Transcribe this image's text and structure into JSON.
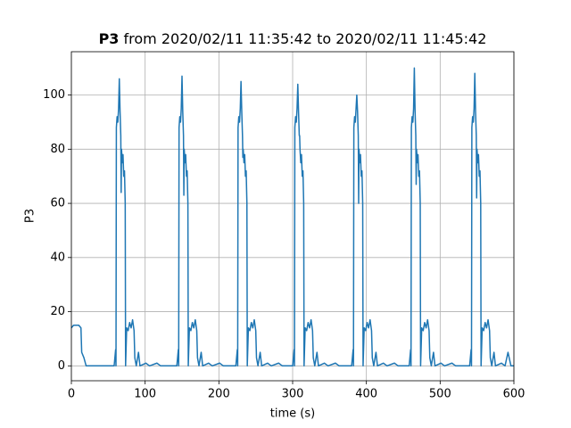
{
  "chart_data": {
    "type": "line",
    "title": [
      "P3",
      "from 2020/02/11 11:35:42 to 2020/02/11 11:45:42"
    ],
    "xlabel": "time (s)",
    "ylabel": "P3",
    "xlim": [
      0,
      600
    ],
    "ylim": [
      -5.5,
      116
    ],
    "xticks": [
      0,
      100,
      200,
      300,
      400,
      500,
      600
    ],
    "yticks": [
      0,
      20,
      40,
      60,
      80,
      100
    ],
    "grid": true,
    "x": [
      0,
      3,
      10,
      13,
      14,
      17,
      20,
      58,
      60,
      60.5,
      61,
      62,
      63,
      64,
      65,
      66,
      67,
      67.5,
      68,
      69,
      70,
      71,
      72,
      73,
      73.5,
      75,
      77,
      79,
      81,
      83,
      85,
      86,
      88,
      91,
      93,
      101,
      106,
      116,
      121,
      143,
      145,
      145.5,
      146,
      147,
      148,
      149,
      150,
      151,
      152,
      152.5,
      153,
      154,
      155,
      156,
      157,
      158,
      158.5,
      160,
      162,
      164,
      166,
      168,
      170,
      171,
      173,
      176,
      178,
      186,
      191,
      201,
      206,
      223,
      225,
      225.5,
      226,
      227,
      228,
      229,
      230,
      231,
      232,
      232.5,
      233,
      234,
      235,
      236,
      237,
      238,
      238.5,
      240,
      242,
      244,
      246,
      248,
      250,
      251,
      253,
      256,
      258,
      266,
      271,
      281,
      286,
      300,
      302,
      302.5,
      303,
      304,
      305,
      306,
      307,
      308,
      309,
      309.5,
      310,
      311,
      312,
      313,
      314,
      315,
      315.5,
      317,
      319,
      321,
      323,
      325,
      327,
      328,
      330,
      333,
      335,
      343,
      348,
      358,
      363,
      380,
      382,
      382.5,
      383,
      384,
      385,
      386,
      387,
      388,
      389,
      389.5,
      390,
      391,
      392,
      393,
      394,
      395,
      395.5,
      397,
      399,
      401,
      403,
      405,
      407,
      408,
      410,
      413,
      415,
      423,
      428,
      438,
      443,
      458,
      460,
      460.5,
      461,
      462,
      463,
      464,
      465,
      466,
      467,
      467.5,
      468,
      469,
      470,
      471,
      472,
      473,
      473.5,
      475,
      477,
      479,
      481,
      483,
      485,
      486,
      488,
      491,
      493,
      501,
      506,
      516,
      521,
      540,
      542,
      542.5,
      543,
      544,
      545,
      546,
      547,
      548,
      549,
      549.5,
      550,
      551,
      552,
      553,
      554,
      555,
      555.5,
      557,
      559,
      561,
      563,
      565,
      567,
      568,
      570,
      573,
      575,
      583,
      588,
      592,
      596,
      600
    ],
    "series": [
      {
        "name": "P3",
        "color": "#1f77b4",
        "values": [
          14,
          15,
          15,
          14,
          5,
          3,
          0,
          0,
          6,
          0,
          88,
          92,
          90,
          95,
          106,
          94,
          85,
          64,
          80,
          75,
          78,
          70,
          72,
          60,
          0,
          14,
          13,
          16,
          14,
          17,
          13,
          3,
          0,
          5,
          0,
          1,
          0,
          1,
          0,
          0,
          6,
          0,
          88,
          92,
          90,
          95,
          107,
          94,
          85,
          63,
          80,
          75,
          78,
          70,
          72,
          60,
          0,
          14,
          13,
          16,
          14,
          17,
          13,
          3,
          0,
          5,
          0,
          1,
          0,
          1,
          0,
          0,
          6,
          0,
          88,
          92,
          90,
          95,
          105,
          94,
          85,
          77,
          80,
          75,
          78,
          70,
          72,
          60,
          0,
          14,
          13,
          16,
          14,
          17,
          13,
          3,
          0,
          5,
          0,
          1,
          0,
          1,
          0,
          0,
          6,
          0,
          88,
          92,
          90,
          95,
          104,
          94,
          85,
          85,
          80,
          75,
          78,
          70,
          72,
          60,
          0,
          14,
          13,
          16,
          14,
          17,
          13,
          3,
          0,
          5,
          0,
          1,
          0,
          1,
          0,
          0,
          6,
          0,
          88,
          92,
          90,
          95,
          100,
          94,
          85,
          60,
          80,
          75,
          78,
          70,
          72,
          60,
          0,
          14,
          13,
          16,
          14,
          17,
          13,
          3,
          0,
          5,
          0,
          1,
          0,
          1,
          0,
          0,
          6,
          0,
          88,
          92,
          90,
          95,
          110,
          94,
          85,
          67,
          80,
          75,
          78,
          70,
          72,
          60,
          0,
          14,
          13,
          16,
          14,
          17,
          13,
          3,
          0,
          5,
          0,
          1,
          0,
          1,
          0,
          0,
          6,
          0,
          88,
          92,
          90,
          95,
          108,
          94,
          85,
          62,
          80,
          75,
          78,
          70,
          72,
          60,
          0,
          14,
          13,
          16,
          14,
          17,
          13,
          3,
          0,
          5,
          0,
          1,
          0,
          5,
          0,
          0
        ]
      }
    ]
  }
}
